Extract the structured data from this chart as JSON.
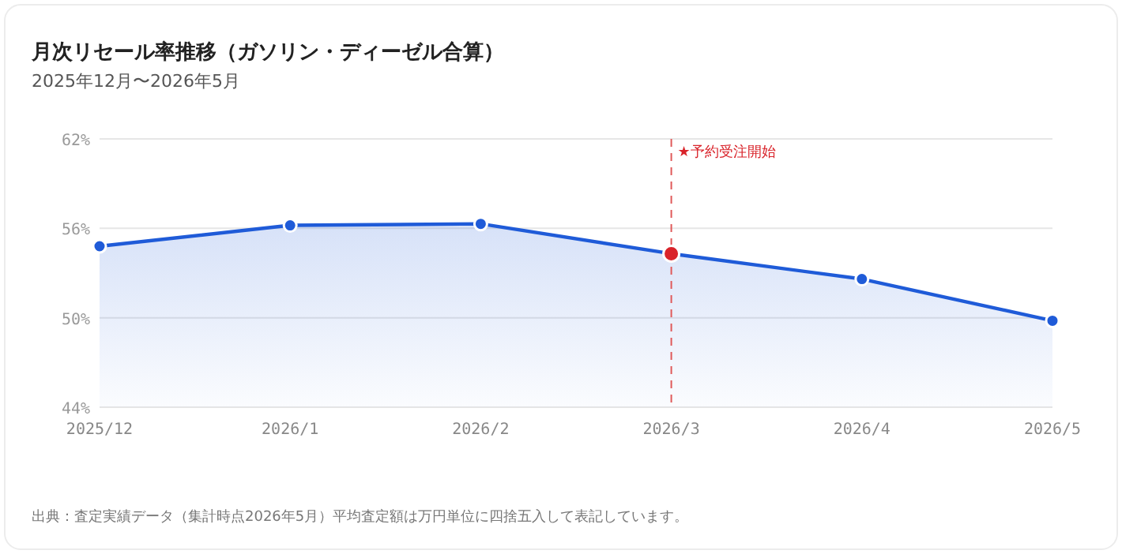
{
  "chart_data": {
    "type": "area",
    "title": "月次リセール率推移（ガソリン・ディーゼル合算）",
    "subtitle": "2025年12月〜2026年5月",
    "categories": [
      "2025/12",
      "2026/1",
      "2026/2",
      "2026/3",
      "2026/4",
      "2026/5"
    ],
    "series": [
      {
        "color": "#1f5bd8",
        "colors": [
          "#1f5bd8",
          "#1f5bd8",
          "#1f5bd8",
          "#d9232a",
          "#1f5bd8",
          "#1f5bd8"
        ],
        "values": [
          54.8,
          56.2,
          56.3,
          54.3,
          52.6,
          49.8
        ]
      }
    ],
    "ylim": [
      44,
      62
    ],
    "yticks": [
      {
        "value": 44,
        "label": "44%"
      },
      {
        "value": 50,
        "label": "50%"
      },
      {
        "value": 56,
        "label": "56%"
      },
      {
        "value": 62,
        "label": "62%"
      }
    ],
    "grid": "y",
    "marker": "circle",
    "line_style": "solid",
    "ref_lines": [
      {
        "axis": "x",
        "value": "2026/3",
        "label": "★予約受注開始",
        "color": "#e05a5a",
        "line_style": "dashed"
      }
    ],
    "annotations": [
      "出典：査定実績データ（集計時点2026年5月）平均査定額は万円単位に四捨五入して表記しています。"
    ]
  }
}
